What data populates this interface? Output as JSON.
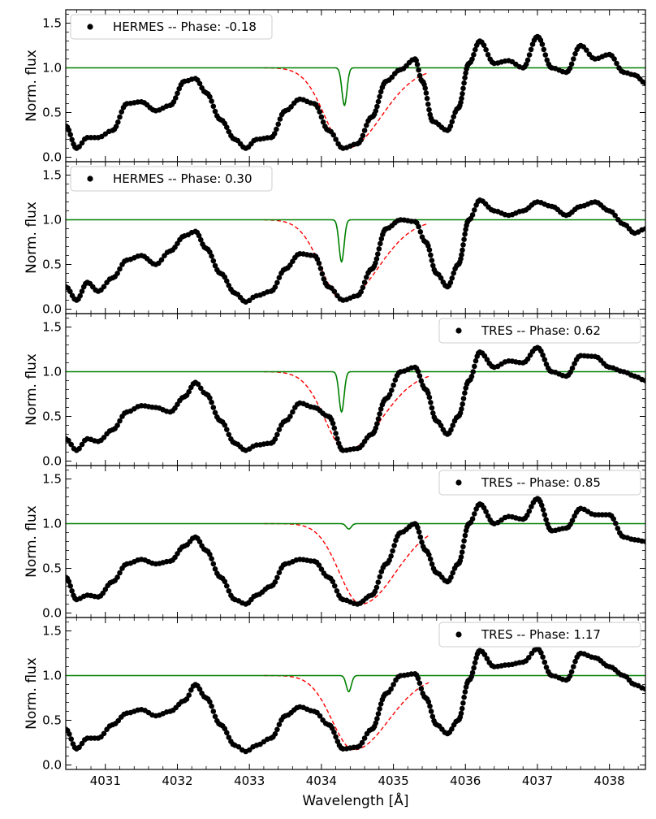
{
  "chart_data": {
    "type": "line",
    "figure_title": "",
    "xlabel": "Wavelength [Å]",
    "ylabel": "Norm. flux",
    "xlim": [
      4030.45,
      4038.5
    ],
    "ylim": [
      -0.05,
      1.65
    ],
    "xticks": [
      4031,
      4032,
      4033,
      4034,
      4035,
      4036,
      4037,
      4038
    ],
    "xtick_labels": [
      "4031",
      "4032",
      "4033",
      "4034",
      "4035",
      "4036",
      "4037",
      "4038"
    ],
    "yticks": [
      0.0,
      0.5,
      1.0,
      1.5
    ],
    "ytick_labels": [
      "0.0",
      "0.5",
      "1.0",
      "1.5"
    ],
    "series_styles": {
      "observed": {
        "color": "#000000",
        "marker": "circle"
      },
      "model_narrow": {
        "color": "#008000",
        "line": "solid"
      },
      "model_broad": {
        "color": "#ff0000",
        "line": "dashed"
      }
    },
    "panels": [
      {
        "legend": "HERMES -- Phase: -0.18",
        "legend_position": "top-left",
        "narrow_line": {
          "center": 4034.32,
          "min_flux": 0.58
        },
        "broad_line": {
          "center": 4034.35,
          "min_flux": 0.1
        },
        "observed": {
          "x": [
            4030.45,
            4030.6,
            4030.75,
            4030.9,
            4031.1,
            4031.3,
            4031.5,
            4031.7,
            4031.9,
            4032.1,
            4032.25,
            4032.4,
            4032.6,
            4032.8,
            4032.95,
            4033.1,
            4033.3,
            4033.5,
            4033.7,
            4033.9,
            4034.1,
            4034.3,
            4034.5,
            4034.7,
            4034.9,
            4035.1,
            4035.3,
            4035.4,
            4035.55,
            4035.75,
            4035.9,
            4036.05,
            4036.2,
            4036.4,
            4036.6,
            4036.8,
            4037.0,
            4037.2,
            4037.4,
            4037.6,
            4037.8,
            4038.0,
            4038.2,
            4038.35,
            4038.5
          ],
          "flux": [
            0.35,
            0.1,
            0.22,
            0.22,
            0.3,
            0.6,
            0.62,
            0.52,
            0.58,
            0.85,
            0.88,
            0.72,
            0.42,
            0.2,
            0.1,
            0.2,
            0.22,
            0.52,
            0.65,
            0.6,
            0.3,
            0.1,
            0.15,
            0.45,
            0.85,
            0.98,
            1.1,
            0.85,
            0.4,
            0.3,
            0.55,
            1.05,
            1.3,
            1.05,
            1.08,
            1.0,
            1.35,
            1.0,
            0.95,
            1.25,
            1.1,
            1.15,
            0.95,
            0.92,
            0.83
          ]
        }
      },
      {
        "legend": "HERMES -- Phase: 0.30",
        "legend_position": "top-left",
        "narrow_line": {
          "center": 4034.28,
          "min_flux": 0.53
        },
        "broad_line": {
          "center": 4034.3,
          "min_flux": 0.1
        },
        "observed": {
          "x": [
            4030.45,
            4030.6,
            4030.75,
            4030.9,
            4031.1,
            4031.3,
            4031.5,
            4031.7,
            4031.9,
            4032.1,
            4032.25,
            4032.4,
            4032.6,
            4032.8,
            4032.95,
            4033.1,
            4033.3,
            4033.5,
            4033.7,
            4033.9,
            4034.1,
            4034.3,
            4034.5,
            4034.7,
            4034.9,
            4035.1,
            4035.3,
            4035.45,
            4035.6,
            4035.75,
            4035.9,
            4036.05,
            4036.2,
            4036.4,
            4036.6,
            4036.8,
            4037.0,
            4037.2,
            4037.4,
            4037.6,
            4037.8,
            4038.0,
            4038.2,
            4038.35,
            4038.5
          ],
          "flux": [
            0.25,
            0.1,
            0.3,
            0.2,
            0.35,
            0.55,
            0.6,
            0.5,
            0.65,
            0.82,
            0.87,
            0.68,
            0.4,
            0.18,
            0.08,
            0.15,
            0.2,
            0.45,
            0.62,
            0.6,
            0.25,
            0.1,
            0.15,
            0.45,
            0.9,
            1.0,
            0.98,
            0.75,
            0.4,
            0.25,
            0.5,
            1.0,
            1.22,
            1.1,
            1.05,
            1.1,
            1.2,
            1.15,
            1.05,
            1.15,
            1.2,
            1.1,
            0.95,
            0.85,
            0.9
          ]
        }
      },
      {
        "legend": "TRES -- Phase: 0.62",
        "legend_position": "top-right",
        "narrow_line": {
          "center": 4034.28,
          "min_flux": 0.55
        },
        "broad_line": {
          "center": 4034.35,
          "min_flux": 0.12
        },
        "observed": {
          "x": [
            4030.45,
            4030.6,
            4030.75,
            4030.9,
            4031.1,
            4031.3,
            4031.5,
            4031.7,
            4031.9,
            4032.1,
            4032.25,
            4032.4,
            4032.6,
            4032.8,
            4032.95,
            4033.1,
            4033.3,
            4033.5,
            4033.7,
            4033.9,
            4034.1,
            4034.3,
            4034.5,
            4034.7,
            4034.9,
            4035.1,
            4035.3,
            4035.45,
            4035.6,
            4035.75,
            4035.9,
            4036.05,
            4036.2,
            4036.4,
            4036.6,
            4036.8,
            4037.0,
            4037.2,
            4037.4,
            4037.6,
            4037.8,
            4038.0,
            4038.2,
            4038.35,
            4038.5
          ],
          "flux": [
            0.25,
            0.12,
            0.25,
            0.22,
            0.35,
            0.55,
            0.62,
            0.6,
            0.55,
            0.72,
            0.88,
            0.75,
            0.45,
            0.2,
            0.12,
            0.18,
            0.2,
            0.45,
            0.65,
            0.6,
            0.5,
            0.12,
            0.14,
            0.3,
            0.7,
            1.0,
            1.05,
            0.8,
            0.45,
            0.3,
            0.5,
            0.9,
            1.22,
            1.05,
            1.12,
            1.1,
            1.27,
            1.0,
            0.95,
            1.18,
            1.17,
            1.05,
            1.0,
            0.95,
            0.9
          ]
        }
      },
      {
        "legend": "TRES -- Phase: 0.85",
        "legend_position": "top-right",
        "narrow_line": {
          "center": 4034.38,
          "min_flux": 0.94
        },
        "broad_line": {
          "center": 4034.55,
          "min_flux": 0.1
        },
        "observed": {
          "x": [
            4030.45,
            4030.6,
            4030.75,
            4030.9,
            4031.1,
            4031.3,
            4031.5,
            4031.7,
            4031.9,
            4032.1,
            4032.25,
            4032.4,
            4032.6,
            4032.8,
            4032.95,
            4033.1,
            4033.3,
            4033.5,
            4033.7,
            4033.9,
            4034.1,
            4034.3,
            4034.5,
            4034.7,
            4034.9,
            4035.1,
            4035.3,
            4035.45,
            4035.6,
            4035.75,
            4035.9,
            4036.05,
            4036.2,
            4036.4,
            4036.6,
            4036.8,
            4037.0,
            4037.2,
            4037.4,
            4037.6,
            4037.8,
            4038.0,
            4038.2,
            4038.35,
            4038.5
          ],
          "flux": [
            0.4,
            0.15,
            0.2,
            0.18,
            0.35,
            0.55,
            0.6,
            0.55,
            0.58,
            0.75,
            0.85,
            0.7,
            0.4,
            0.15,
            0.1,
            0.2,
            0.3,
            0.55,
            0.6,
            0.58,
            0.4,
            0.15,
            0.1,
            0.2,
            0.55,
            0.9,
            1.0,
            0.7,
            0.45,
            0.35,
            0.55,
            1.0,
            1.22,
            1.0,
            1.08,
            1.05,
            1.28,
            0.92,
            0.95,
            1.17,
            1.1,
            1.1,
            0.85,
            0.82,
            0.8
          ]
        }
      },
      {
        "legend": "TRES -- Phase: 1.17",
        "legend_position": "top-right",
        "narrow_line": {
          "center": 4034.38,
          "min_flux": 0.82
        },
        "broad_line": {
          "center": 4034.45,
          "min_flux": 0.17
        },
        "observed": {
          "x": [
            4030.45,
            4030.6,
            4030.75,
            4030.9,
            4031.1,
            4031.3,
            4031.5,
            4031.7,
            4031.9,
            4032.1,
            4032.25,
            4032.4,
            4032.6,
            4032.8,
            4032.95,
            4033.1,
            4033.3,
            4033.5,
            4033.7,
            4033.9,
            4034.1,
            4034.3,
            4034.5,
            4034.7,
            4034.9,
            4035.1,
            4035.3,
            4035.45,
            4035.6,
            4035.75,
            4035.9,
            4036.05,
            4036.2,
            4036.4,
            4036.6,
            4036.8,
            4037.0,
            4037.2,
            4037.4,
            4037.6,
            4037.8,
            4038.0,
            4038.2,
            4038.35,
            4038.5
          ],
          "flux": [
            0.4,
            0.18,
            0.3,
            0.3,
            0.45,
            0.58,
            0.62,
            0.55,
            0.6,
            0.72,
            0.9,
            0.75,
            0.45,
            0.22,
            0.15,
            0.22,
            0.3,
            0.55,
            0.65,
            0.6,
            0.45,
            0.18,
            0.2,
            0.4,
            0.8,
            1.0,
            1.02,
            0.75,
            0.45,
            0.35,
            0.5,
            0.95,
            1.28,
            1.1,
            1.12,
            1.15,
            1.3,
            1.0,
            0.95,
            1.25,
            1.2,
            1.1,
            1.0,
            0.9,
            0.85
          ]
        }
      }
    ]
  }
}
